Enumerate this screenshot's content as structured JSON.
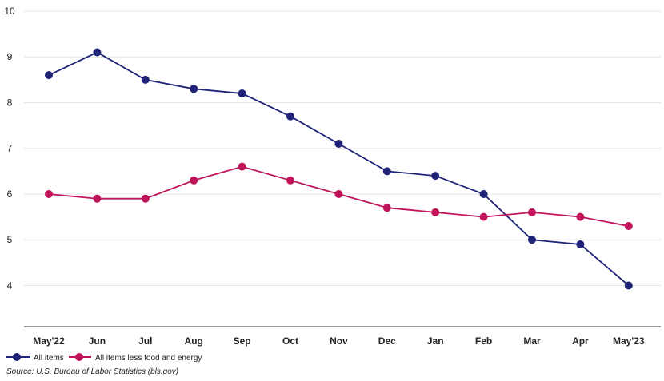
{
  "chart_data": {
    "type": "line",
    "categories": [
      "May'22",
      "Jun",
      "Jul",
      "Aug",
      "Sep",
      "Oct",
      "Nov",
      "Dec",
      "Jan",
      "Feb",
      "Mar",
      "Apr",
      "May'23"
    ],
    "series": [
      {
        "name": "All items",
        "color": "#1f2478",
        "values": [
          8.6,
          9.1,
          8.5,
          8.3,
          8.2,
          7.7,
          7.1,
          6.5,
          6.4,
          6.0,
          5.0,
          4.9,
          4.0
        ]
      },
      {
        "name": "All items less food and energy",
        "color": "#c0145a",
        "values": [
          6.0,
          5.9,
          5.9,
          6.3,
          6.6,
          6.3,
          6.0,
          5.7,
          5.6,
          5.5,
          5.6,
          5.5,
          5.3
        ]
      }
    ],
    "yticks": [
      4,
      5,
      6,
      7,
      8,
      9,
      10
    ],
    "ylim": [
      3.1,
      10
    ],
    "grid": true,
    "legend": "bottom-left",
    "source": "Source: U.S. Bureau of Labor Statistics (bls.gov)"
  }
}
